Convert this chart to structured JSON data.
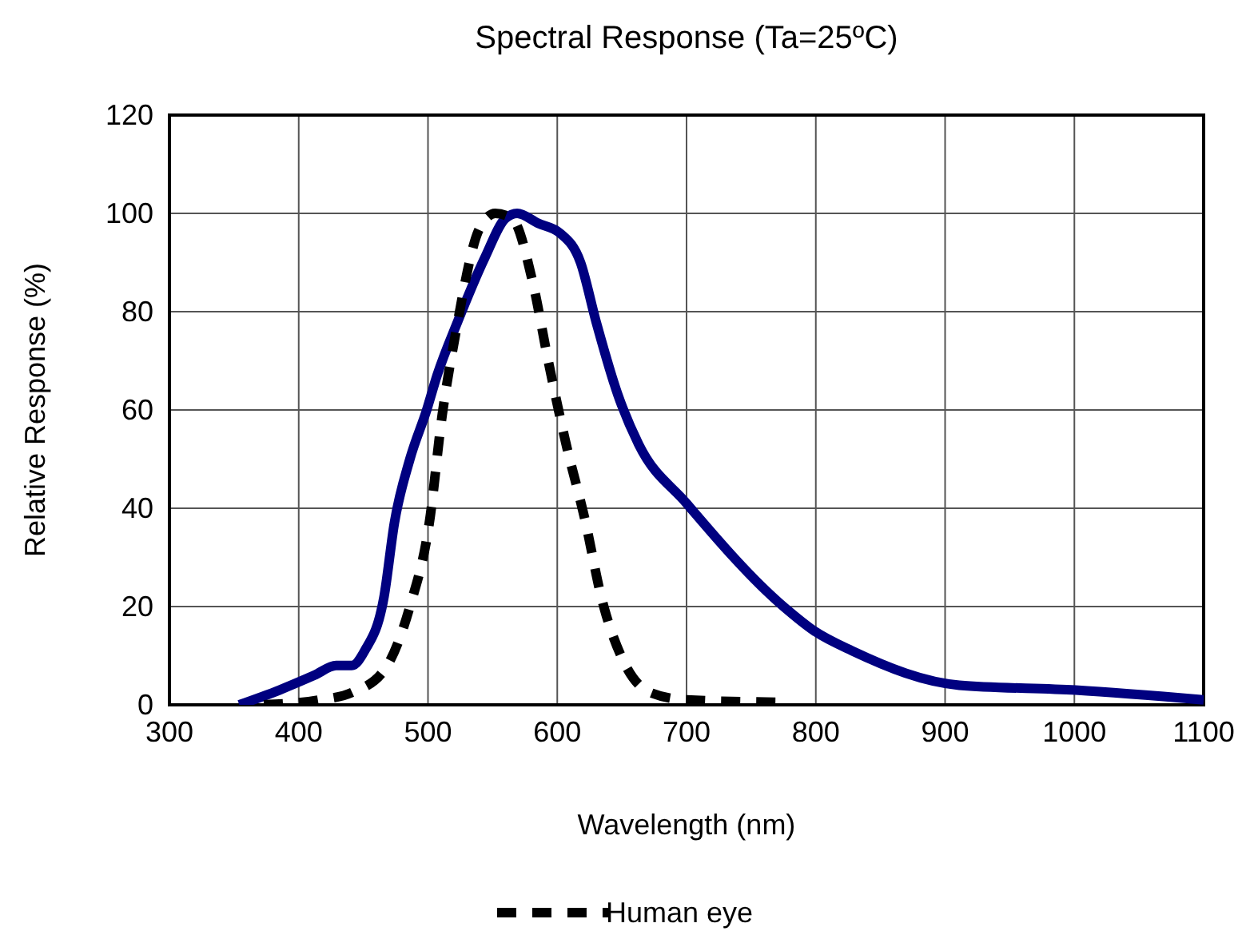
{
  "chart_data": {
    "type": "line",
    "title": "Spectral Response (Ta=25ºC)",
    "xlabel": "Wavelength (nm)",
    "ylabel": "Relative Response (%)",
    "xlim": [
      300,
      1100
    ],
    "xticks": [
      300,
      400,
      500,
      600,
      700,
      800,
      900,
      1000,
      1100
    ],
    "ylim": [
      0,
      120
    ],
    "yticks": [
      0,
      20,
      40,
      60,
      80,
      100,
      120
    ],
    "grid": true,
    "legend": "bottom",
    "series": [
      {
        "color": "#000080",
        "line_style": "solid",
        "x": [
          354,
          385,
          412,
          429,
          441,
          451,
          466,
          474,
          486,
          499,
          507,
          523,
          544,
          560,
          569,
          585,
          602,
          618,
          630,
          647,
          663,
          700,
          775,
          799,
          828,
          911,
          1001,
          1100
        ],
        "values": [
          0,
          3,
          6,
          8,
          8,
          11,
          22,
          37,
          50,
          60,
          67,
          78,
          91,
          99,
          100,
          98,
          96,
          90,
          78,
          63,
          53,
          41,
          20,
          15,
          11,
          4,
          3,
          1
        ]
      },
      {
        "name": "Human eye",
        "color": "#000000",
        "line_style": "dashed",
        "x": [
          373,
          416,
          441,
          466,
          486,
          501,
          511,
          521,
          540,
          552,
          565,
          581,
          593,
          606,
          622,
          634,
          651,
          672,
          700,
          780
        ],
        "values": [
          0,
          1,
          2.5,
          7,
          20,
          37,
          59,
          75,
          97,
          100,
          99,
          86,
          70,
          54,
          37,
          22,
          9,
          2.5,
          1,
          0.5
        ]
      }
    ]
  }
}
